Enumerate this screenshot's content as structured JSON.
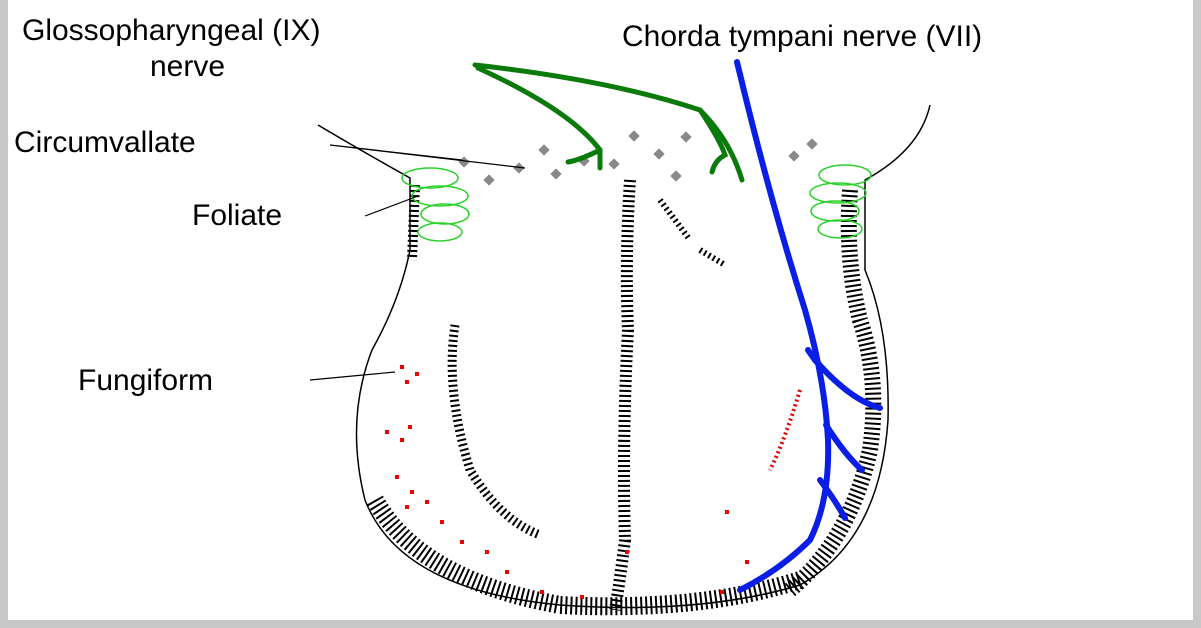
{
  "labels": {
    "glossopharyngeal": [
      "Glossopharyngeal (IX)",
      "nerve"
    ],
    "chorda_tympani": "Chorda tympani nerve (VII)",
    "circumvallate": "Circumvallate",
    "foliate": "Foliate",
    "fungiform": "Fungiform"
  }
}
